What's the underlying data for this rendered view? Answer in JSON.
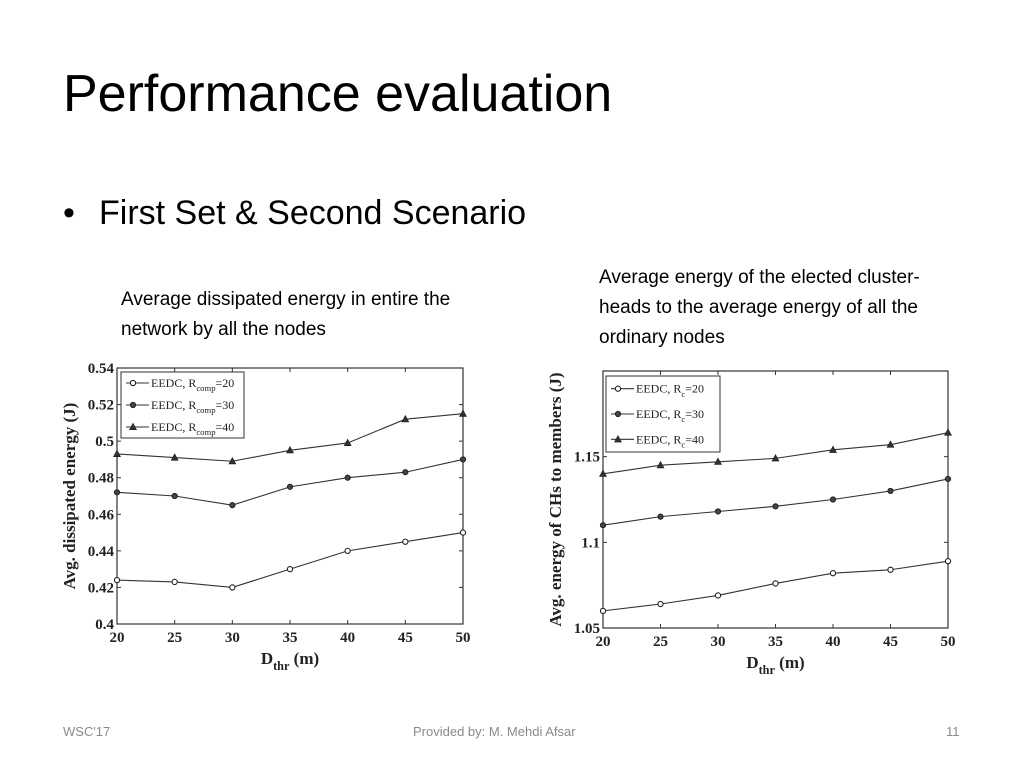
{
  "slide": {
    "title": "Performance evaluation",
    "bullet": "First Set & Second Scenario",
    "caption_left": "Average dissipated energy in entire the network by all the nodes",
    "caption_right": "Average energy of the elected cluster-heads to the average energy of all the ordinary nodes"
  },
  "footer": {
    "left": "WSC'17",
    "center": "Provided by: M. Mehdi Afsar",
    "right": "11"
  },
  "chart_data": [
    {
      "type": "line",
      "xlabel": "D_thr (m)",
      "ylabel": "Avg. dissipated energy (J)",
      "x": [
        20,
        25,
        30,
        35,
        40,
        45,
        50
      ],
      "xticks": [
        20,
        25,
        30,
        35,
        40,
        45,
        50
      ],
      "yticks": [
        0.4,
        0.42,
        0.44,
        0.46,
        0.48,
        0.5,
        0.52,
        0.54
      ],
      "xlim": [
        20,
        50
      ],
      "ylim": [
        0.4,
        0.54
      ],
      "legend_position": "top-left",
      "grid": false,
      "series": [
        {
          "name": "EEDC, R_comp=20",
          "marker": "circle",
          "values": [
            0.424,
            0.423,
            0.42,
            0.43,
            0.44,
            0.445,
            0.45
          ]
        },
        {
          "name": "EEDC, R_comp=30",
          "marker": "square",
          "values": [
            0.472,
            0.47,
            0.465,
            0.475,
            0.48,
            0.483,
            0.49
          ]
        },
        {
          "name": "EEDC, R_comp=40",
          "marker": "triangle",
          "values": [
            0.493,
            0.491,
            0.489,
            0.495,
            0.499,
            0.512,
            0.515
          ]
        }
      ]
    },
    {
      "type": "line",
      "xlabel": "D_thr (m)",
      "ylabel": "Avg. energy of CHs to members (J)",
      "x": [
        20,
        25,
        30,
        35,
        40,
        45,
        50
      ],
      "xticks": [
        20,
        25,
        30,
        35,
        40,
        45,
        50
      ],
      "yticks": [
        1.05,
        1.1,
        1.15
      ],
      "xlim": [
        20,
        50
      ],
      "ylim": [
        1.05,
        1.2
      ],
      "legend_position": "top-left",
      "grid": false,
      "series": [
        {
          "name": "EEDC, R_c=20",
          "marker": "circle",
          "values": [
            1.06,
            1.064,
            1.069,
            1.076,
            1.082,
            1.084,
            1.089
          ]
        },
        {
          "name": "EEDC, R_c=30",
          "marker": "square",
          "values": [
            1.11,
            1.115,
            1.118,
            1.121,
            1.125,
            1.13,
            1.137
          ]
        },
        {
          "name": "EEDC, R_c=40",
          "marker": "triangle",
          "values": [
            1.14,
            1.145,
            1.147,
            1.149,
            1.154,
            1.157,
            1.164
          ]
        }
      ]
    }
  ]
}
